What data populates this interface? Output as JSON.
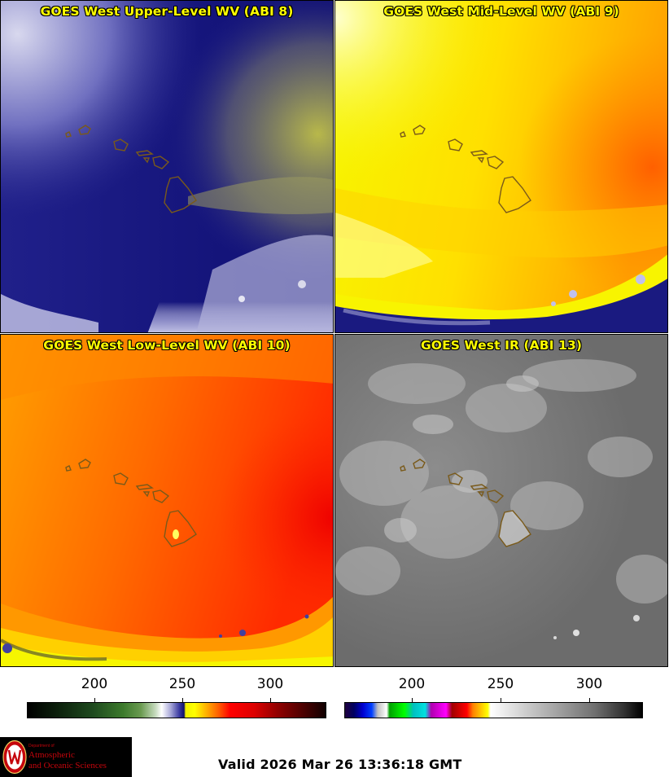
{
  "panels": [
    {
      "title": "GOES West Upper-Level WV (ABI 8)"
    },
    {
      "title": "GOES West Mid-Level WV (ABI 9)"
    },
    {
      "title": "GOES West Low-Level WV (ABI 10)"
    },
    {
      "title": "GOES West IR (ABI 13)"
    }
  ],
  "colorbars": [
    {
      "name": "water-vapor",
      "ticks": [
        "200",
        "250",
        "300"
      ],
      "tick_values": [
        200,
        250,
        300
      ],
      "range": [
        160,
        330
      ]
    },
    {
      "name": "infrared",
      "ticks": [
        "200",
        "250",
        "300"
      ],
      "tick_values": [
        200,
        250,
        300
      ],
      "range": [
        160,
        330
      ]
    }
  ],
  "logo": {
    "dept": "Department of",
    "line1": "Atmospheric",
    "line2": "and Oceanic Sciences"
  },
  "valid_time": "Valid 2026 Mar 26 13:36:18 GMT",
  "colors": {
    "title_text": "#ffff00",
    "coastline": "#7a5a1a"
  }
}
